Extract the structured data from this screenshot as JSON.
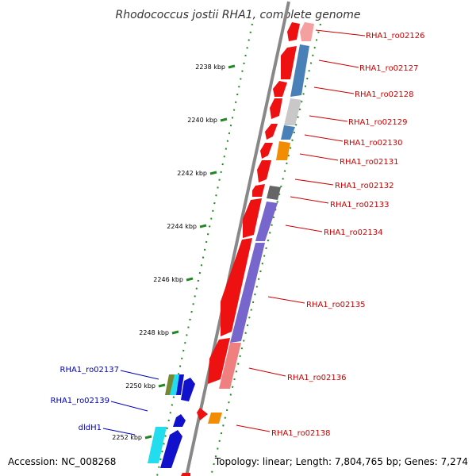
{
  "title": "Rhodococcus jostii RHA1, complete genome",
  "accession": "Accession: NC_008268",
  "topology": "Topology: linear; Length: 7,804,765 bp; Genes: 7,274",
  "ticks": [
    {
      "label": "2238 kbp"
    },
    {
      "label": "2240 kbp"
    },
    {
      "label": "2242 kbp"
    },
    {
      "label": "2244 kbp"
    },
    {
      "label": "2246 kbp"
    },
    {
      "label": "2248 kbp"
    },
    {
      "label": "2250 kbp"
    },
    {
      "label": "2252 kbp"
    }
  ],
  "genes_right": [
    {
      "label": "RHA1_ro02126"
    },
    {
      "label": "RHA1_ro02127"
    },
    {
      "label": "RHA1_ro02128"
    },
    {
      "label": "RHA1_ro02129"
    },
    {
      "label": "RHA1_ro02130"
    },
    {
      "label": "RHA1_ro02131"
    },
    {
      "label": "RHA1_ro02132"
    },
    {
      "label": "RHA1_ro02133"
    },
    {
      "label": "RHA1_ro02134"
    },
    {
      "label": "RHA1_ro02135"
    },
    {
      "label": "RHA1_ro02136"
    },
    {
      "label": "RHA1_ro02138"
    }
  ],
  "genes_left": [
    {
      "label": "RHA1_ro02137"
    },
    {
      "label": "RHA1_ro02139"
    },
    {
      "label": "dldH1"
    }
  ],
  "colors": {
    "gene_red": "#ee1111",
    "gene_pink": "#f4a0a0",
    "steel_blue": "#4a80b8",
    "light_gray": "#c8c8c8",
    "dark_gray": "#666666",
    "orange": "#f28c00",
    "purple": "#7766cc",
    "salmon": "#f08080",
    "blue": "#1111cc",
    "cyan": "#22ddee",
    "olive": "#778833",
    "right_label": "#cc0000",
    "left_label": "#0000bb",
    "dots": "#228822"
  }
}
